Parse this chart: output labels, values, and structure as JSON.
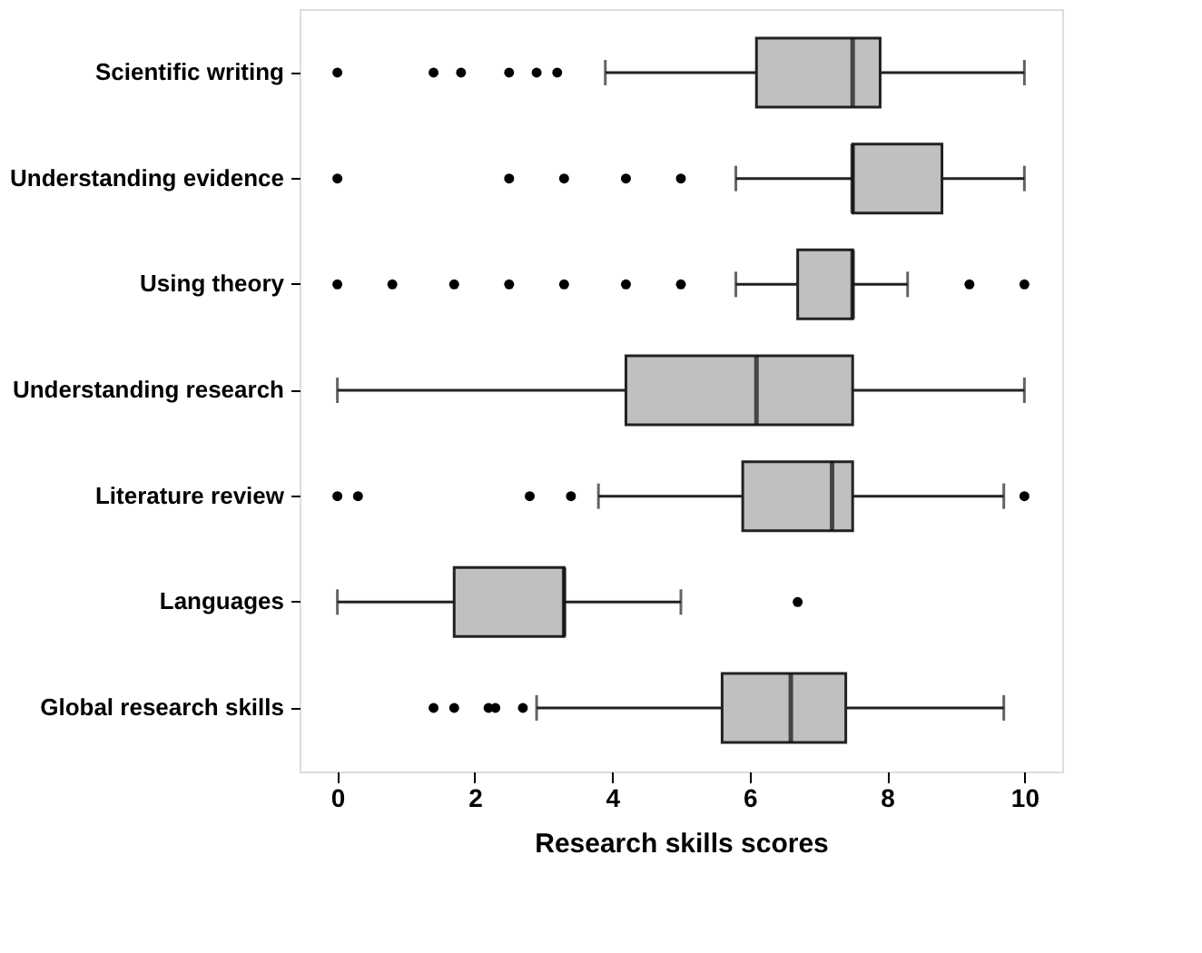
{
  "chart_data": {
    "type": "box",
    "orientation": "horizontal",
    "xlabel": "Research skills scores",
    "categories": [
      "Scientific writing",
      "Understanding evidence",
      "Using theory",
      "Understanding research",
      "Literature review",
      "Languages",
      "Global research skills"
    ],
    "boxes": [
      {
        "low": 3.9,
        "q1": 6.1,
        "median": 7.5,
        "q3": 7.9,
        "high": 10,
        "outliers": [
          0,
          1.4,
          1.8,
          2.5,
          2.9,
          3.2
        ]
      },
      {
        "low": 5.8,
        "q1": 7.5,
        "median": 7.5,
        "q3": 8.8,
        "high": 10,
        "outliers": [
          0,
          2.5,
          3.3,
          4.2,
          5.0
        ]
      },
      {
        "low": 5.8,
        "q1": 6.7,
        "median": 7.5,
        "q3": 7.5,
        "high": 8.3,
        "outliers": [
          0,
          0.8,
          1.7,
          2.5,
          3.3,
          4.2,
          5.0,
          9.2,
          10
        ]
      },
      {
        "low": 0,
        "q1": 4.2,
        "median": 6.1,
        "q3": 7.5,
        "high": 10
      },
      {
        "low": 3.8,
        "q1": 5.9,
        "median": 7.2,
        "q3": 7.5,
        "high": 9.7,
        "outliers": [
          0,
          0.3,
          2.8,
          3.4,
          10
        ]
      },
      {
        "low": 0,
        "q1": 1.7,
        "median": 3.3,
        "q3": 3.3,
        "high": 5.0,
        "outliers": [
          6.7
        ]
      },
      {
        "low": 2.9,
        "q1": 5.6,
        "median": 6.6,
        "q3": 7.4,
        "high": 9.7,
        "outliers": [
          1.4,
          1.7,
          2.2,
          2.3,
          2.7
        ]
      }
    ],
    "color": "#c0c0c0",
    "xlim": [
      -0.55,
      10.55
    ],
    "xticks": [
      0,
      2,
      4,
      6,
      8,
      10
    ]
  }
}
